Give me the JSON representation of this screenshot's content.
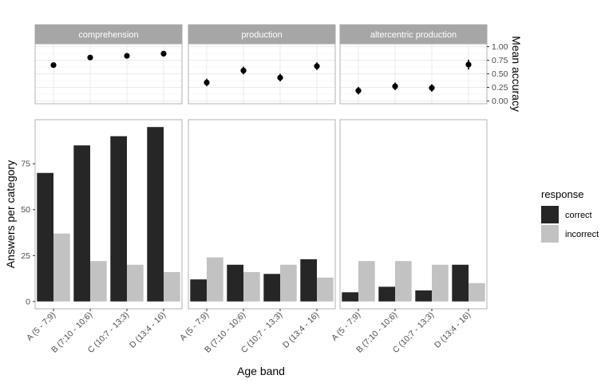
{
  "chart_data": [
    {
      "type": "scatter",
      "facets": [
        "comprehension",
        "production",
        "altercentric production"
      ],
      "categories": [
        "A (5 - 7;9)",
        "B (7;10 - 10;6)",
        "C (10;7 - 13;3)",
        "D (13;4 - 16)"
      ],
      "series": [
        {
          "facet": "comprehension",
          "values": [
            0.66,
            0.8,
            0.83,
            0.87
          ],
          "lower": [
            0.63,
            0.77,
            0.8,
            0.84
          ],
          "upper": [
            0.69,
            0.83,
            0.86,
            0.9
          ]
        },
        {
          "facet": "production",
          "values": [
            0.34,
            0.56,
            0.43,
            0.64
          ],
          "lower": [
            0.27,
            0.49,
            0.36,
            0.57
          ],
          "upper": [
            0.41,
            0.63,
            0.5,
            0.71
          ]
        },
        {
          "facet": "altercentric production",
          "values": [
            0.19,
            0.27,
            0.24,
            0.67
          ],
          "lower": [
            0.12,
            0.2,
            0.17,
            0.58
          ],
          "upper": [
            0.26,
            0.34,
            0.31,
            0.76
          ]
        }
      ],
      "ylabel": "Mean accuracy",
      "yticks": [
        "0.00",
        "0.25",
        "0.50",
        "0.75",
        "1.00"
      ],
      "ylim": [
        -0.05,
        1.05
      ],
      "grid": true
    },
    {
      "type": "bar",
      "facets": [
        "comprehension",
        "production",
        "altercentric production"
      ],
      "categories": [
        "A (5 - 7;9)",
        "B (7;10 - 10;6)",
        "C (10;7 - 13;3)",
        "D (13;4 - 16)"
      ],
      "legend_title": "response",
      "series": [
        {
          "name": "correct",
          "color": "#262626",
          "facet_values": [
            [
              70,
              85,
              90,
              95
            ],
            [
              12,
              20,
              15,
              23
            ],
            [
              5,
              8,
              6,
              20
            ]
          ]
        },
        {
          "name": "incorrect",
          "color": "#c2c2c2",
          "facet_values": [
            [
              37,
              22,
              20,
              16
            ],
            [
              24,
              16,
              20,
              13
            ],
            [
              22,
              22,
              20,
              10
            ]
          ]
        }
      ],
      "xlabel": "Age band",
      "ylabel": "Answers per category",
      "yticks": [
        "0",
        "25",
        "50",
        "75"
      ],
      "ylim": [
        -4,
        99
      ],
      "legend_position": "right",
      "grid": false
    }
  ]
}
